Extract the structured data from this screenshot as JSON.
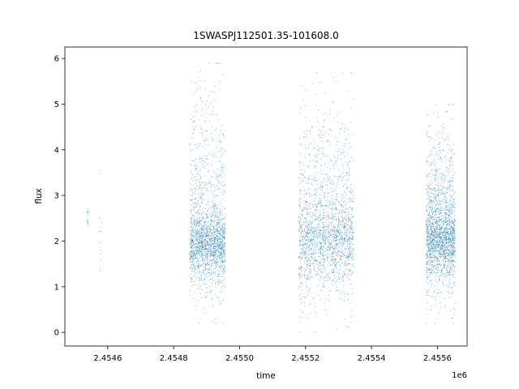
{
  "chart_data": {
    "type": "scatter",
    "title": "1SWASPJ112501.35-101608.0",
    "xlabel": "time",
    "ylabel": "flux",
    "x_offset_label": "1e6",
    "xlim": [
      2454470,
      2455690
    ],
    "ylim": [
      -0.3,
      6.25
    ],
    "x_ticks": [
      2454600,
      2454800,
      2455000,
      2455200,
      2455400,
      2455600
    ],
    "x_tick_labels": [
      "2.4546",
      "2.4548",
      "2.4550",
      "2.4552",
      "2.4554",
      "2.4556"
    ],
    "y_ticks": [
      0,
      1,
      2,
      3,
      4,
      5,
      6
    ],
    "y_tick_labels": [
      "0",
      "1",
      "2",
      "3",
      "4",
      "5",
      "6"
    ],
    "grid": false,
    "marker_color": "#1f77b4",
    "clusters": [
      {
        "x_range": [
          2454535,
          2454540
        ],
        "y_core": [
          2.3,
          2.7
        ],
        "y_range": [
          2.3,
          2.7
        ],
        "density": "sparse"
      },
      {
        "x_range": [
          2454570,
          2454580
        ],
        "y_core": [
          1.1,
          3.9
        ],
        "y_range": [
          1.1,
          3.9
        ],
        "density": "sparse"
      },
      {
        "x_range": [
          2454848,
          2454955
        ],
        "y_core": [
          1.5,
          2.4
        ],
        "y_range": [
          0.2,
          5.9
        ],
        "density": "dense"
      },
      {
        "x_range": [
          2455178,
          2455345
        ],
        "y_core": [
          1.4,
          2.7
        ],
        "y_range": [
          0.0,
          5.7
        ],
        "density": "dense"
      },
      {
        "x_range": [
          2455565,
          2455653
        ],
        "y_core": [
          1.5,
          2.6
        ],
        "y_range": [
          0.2,
          5.0
        ],
        "density": "dense"
      }
    ]
  }
}
